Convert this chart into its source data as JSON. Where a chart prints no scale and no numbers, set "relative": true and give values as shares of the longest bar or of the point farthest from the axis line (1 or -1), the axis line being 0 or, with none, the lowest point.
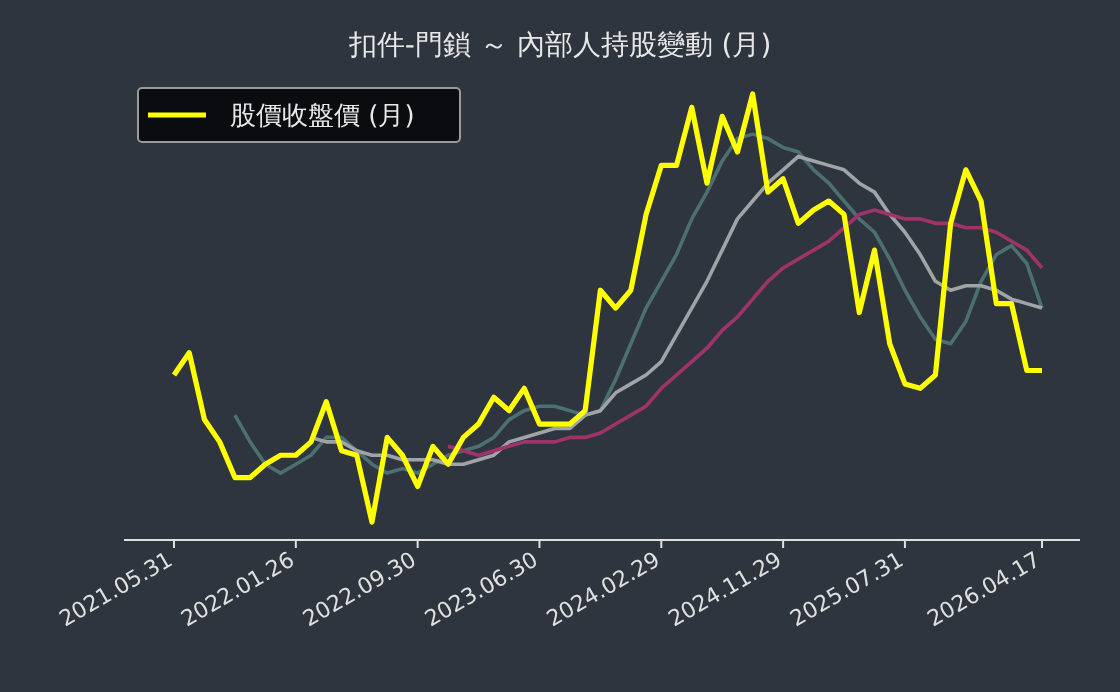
{
  "chart_data": {
    "type": "line",
    "title": "扣件-門鎖 ～ 內部人持股變動 (月)",
    "relative": true,
    "legend": "top left",
    "categories": [
      "2021.05.31",
      null,
      null,
      null,
      null,
      null,
      null,
      null,
      "2022.01.26",
      null,
      null,
      null,
      null,
      null,
      null,
      null,
      "2022.09.30",
      null,
      null,
      null,
      null,
      null,
      null,
      null,
      "2023.06.30",
      null,
      null,
      null,
      null,
      null,
      null,
      null,
      "2024.02.29",
      null,
      null,
      null,
      null,
      null,
      null,
      null,
      "2024.11.29",
      null,
      null,
      null,
      null,
      null,
      null,
      null,
      "2025.07.31",
      null,
      null,
      null,
      null,
      null,
      null,
      null,
      null,
      "2026.04.17"
    ],
    "series": [
      {
        "color": "#4a7070",
        "values": [
          null,
          null,
          null,
          null,
          0.28,
          0.22,
          0.17,
          0.15,
          0.17,
          0.19,
          0.23,
          0.23,
          0.2,
          0.17,
          0.15,
          0.16,
          0.15,
          0.17,
          0.19,
          0.2,
          0.21,
          0.23,
          0.27,
          0.29,
          0.3,
          0.3,
          0.29,
          0.28,
          0.29,
          0.36,
          0.44,
          0.52,
          0.58,
          0.64,
          0.72,
          0.78,
          0.85,
          0.9,
          0.91,
          0.9,
          0.88,
          0.87,
          0.83,
          0.8,
          0.76,
          0.72,
          0.69,
          0.63,
          0.56,
          0.5,
          0.45,
          0.44,
          0.49,
          0.58,
          0.64,
          0.66,
          0.62,
          0.52
        ]
      },
      {
        "color": "#a0a4a8",
        "values": [
          null,
          null,
          null,
          null,
          null,
          null,
          null,
          null,
          null,
          0.23,
          0.22,
          0.22,
          0.2,
          0.19,
          0.19,
          0.18,
          0.18,
          0.18,
          0.17,
          0.17,
          0.18,
          0.19,
          0.22,
          0.23,
          0.24,
          0.25,
          0.25,
          0.28,
          0.29,
          0.33,
          0.35,
          0.37,
          0.4,
          0.46,
          0.52,
          0.58,
          0.65,
          0.72,
          0.76,
          0.8,
          0.83,
          0.86,
          0.85,
          0.84,
          0.83,
          0.8,
          0.78,
          0.73,
          0.69,
          0.64,
          0.58,
          0.56,
          0.57,
          0.57,
          0.56,
          0.54,
          0.53,
          0.52
        ]
      },
      {
        "color": "#a0336a",
        "values": [
          null,
          null,
          null,
          null,
          null,
          null,
          null,
          null,
          null,
          null,
          null,
          null,
          null,
          null,
          null,
          null,
          null,
          null,
          0.21,
          0.2,
          0.19,
          0.2,
          0.21,
          0.22,
          0.22,
          0.22,
          0.23,
          0.23,
          0.24,
          0.26,
          0.28,
          0.3,
          0.34,
          0.37,
          0.4,
          0.43,
          0.47,
          0.5,
          0.54,
          0.58,
          0.61,
          0.63,
          0.65,
          0.67,
          0.7,
          0.73,
          0.74,
          0.73,
          0.72,
          0.72,
          0.71,
          0.71,
          0.7,
          0.7,
          0.69,
          0.67,
          0.65,
          0.61
        ]
      },
      {
        "name": "股價收盤價 (月)",
        "color": "#ffff00",
        "values": [
          0.37,
          0.42,
          0.27,
          0.22,
          0.14,
          0.14,
          0.17,
          0.19,
          0.19,
          0.22,
          0.31,
          0.2,
          0.19,
          0.04,
          0.23,
          0.19,
          0.12,
          0.21,
          0.17,
          0.23,
          0.26,
          0.32,
          0.29,
          0.34,
          0.26,
          0.26,
          0.26,
          0.29,
          0.56,
          0.52,
          0.56,
          0.73,
          0.84,
          0.84,
          0.97,
          0.8,
          0.95,
          0.87,
          1,
          0.78,
          0.81,
          0.71,
          0.74,
          0.76,
          0.73,
          0.51,
          0.65,
          0.44,
          0.35,
          0.34,
          0.37,
          0.71,
          0.83,
          0.76,
          0.53,
          0.53,
          0.38,
          0.38
        ]
      }
    ]
  }
}
